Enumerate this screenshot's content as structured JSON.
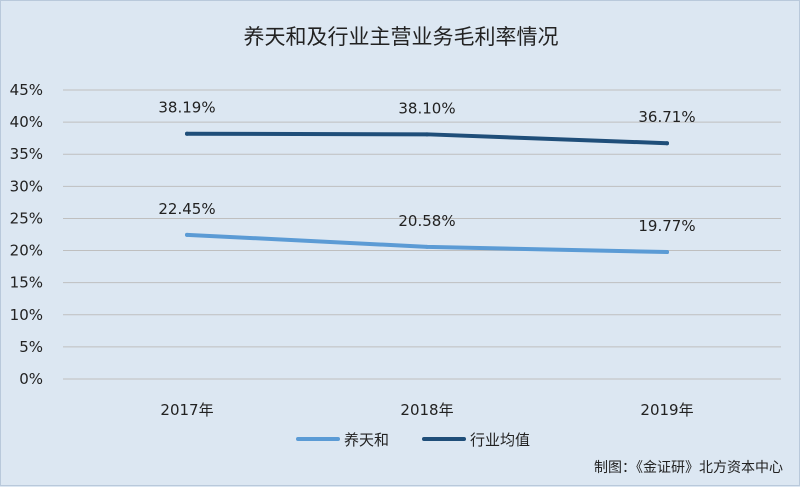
{
  "chart_data": {
    "type": "line",
    "title": "养天和及行业主营业务毛利率情况",
    "categories": [
      "2017年",
      "2018年",
      "2019年"
    ],
    "series": [
      {
        "name": "养天和",
        "values": [
          22.45,
          20.58,
          19.77
        ],
        "labels": [
          "22.45%",
          "20.58%",
          "19.77%"
        ],
        "color": "#5b9bd5"
      },
      {
        "name": "行业均值",
        "values": [
          38.19,
          38.1,
          36.71
        ],
        "labels": [
          "38.19%",
          "38.10%",
          "36.71%"
        ],
        "color": "#1f4e79"
      }
    ],
    "ylim": [
      0,
      45
    ],
    "yticks": [
      0,
      5,
      10,
      15,
      20,
      25,
      30,
      35,
      40,
      45
    ],
    "ytick_labels": [
      "0%",
      "5%",
      "10%",
      "15%",
      "20%",
      "25%",
      "30%",
      "35%",
      "40%",
      "45%"
    ],
    "grid": true,
    "legend_position": "bottom",
    "xlabel": "",
    "ylabel": ""
  },
  "credit": "制图：《金证研》北方资本中心",
  "colors": {
    "background": "#dce7f2",
    "gridline": "#bfbfbf"
  }
}
